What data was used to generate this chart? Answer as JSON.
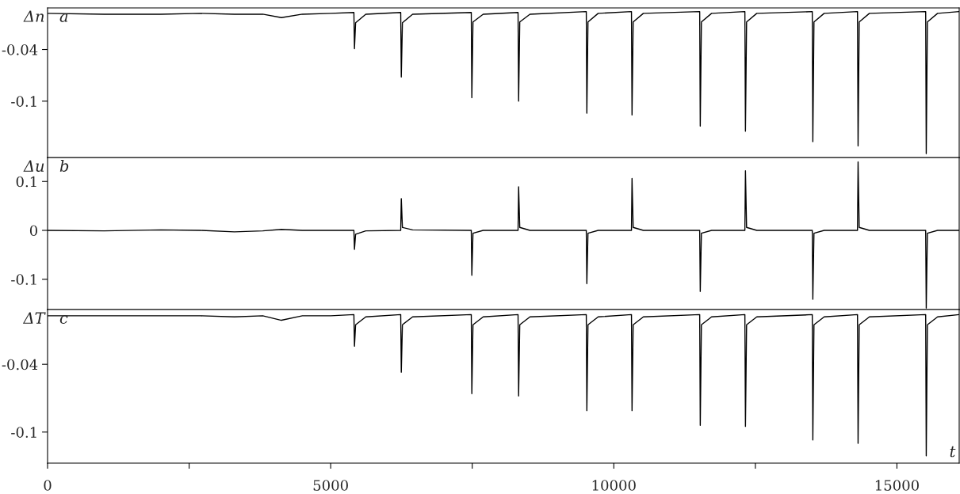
{
  "chart_data": [
    {
      "type": "line",
      "ylabel": "Δn",
      "annotations": [
        "a"
      ],
      "tick_labels": "y",
      "xlim": [
        0,
        16100
      ],
      "ylim": [
        -0.1655,
        0.0083
      ],
      "yticks": [
        -0.04,
        -0.1
      ],
      "x": [
        0,
        1000,
        2000,
        2700,
        3300,
        3800,
        4130,
        4500,
        5000,
        5410,
        5420,
        5440,
        5620,
        6237,
        6247,
        6267,
        6447,
        7483,
        7493,
        7513,
        7693,
        8309,
        8319,
        8339,
        8519,
        9514,
        9524,
        9544,
        9724,
        10312,
        10322,
        10342,
        10522,
        11517,
        11527,
        11547,
        11727,
        12315,
        12325,
        12345,
        12525,
        13505,
        13515,
        13535,
        13715,
        14304,
        14314,
        14334,
        14514,
        15508,
        15518,
        15538,
        15718,
        16100
      ],
      "series": [
        {
          "color": "#000000",
          "values": [
            0.002,
            0.001,
            0.001,
            0.002,
            0.001,
            0.001,
            -0.003,
            0.001,
            0.002,
            0.003,
            -0.039,
            -0.009,
            0.001,
            0.003,
            -0.072,
            -0.009,
            0.001,
            0.003,
            -0.096,
            -0.008,
            0.001,
            0.003,
            -0.1,
            -0.008,
            0.001,
            0.004,
            -0.114,
            -0.008,
            0.002,
            0.004,
            -0.116,
            -0.008,
            0.002,
            0.004,
            -0.129,
            -0.008,
            0.002,
            0.004,
            -0.135,
            -0.008,
            0.002,
            0.004,
            -0.147,
            -0.008,
            0.002,
            0.004,
            -0.152,
            -0.008,
            0.002,
            0.004,
            -0.161,
            -0.008,
            0.002,
            0.004
          ]
        }
      ]
    },
    {
      "type": "line",
      "ylabel": "Δu",
      "annotations": [
        "b"
      ],
      "tick_labels": "y",
      "xlim": [
        0,
        16100
      ],
      "ylim": [
        -0.162,
        0.149
      ],
      "yticks": [
        0.1,
        0,
        -0.1
      ],
      "x": [
        0,
        1000,
        2000,
        2700,
        3300,
        3800,
        4130,
        4500,
        5000,
        5410,
        5420,
        5440,
        5620,
        6237,
        6247,
        6267,
        6447,
        7483,
        7493,
        7513,
        7693,
        8309,
        8319,
        8339,
        8519,
        9514,
        9524,
        9544,
        9724,
        10312,
        10322,
        10342,
        10522,
        11517,
        11527,
        11547,
        11727,
        12315,
        12325,
        12345,
        12525,
        13505,
        13515,
        13535,
        13715,
        14304,
        14314,
        14334,
        14514,
        15508,
        15518,
        15538,
        15718,
        16100
      ],
      "series": [
        {
          "color": "#000000",
          "values": [
            0,
            -0.001,
            0.001,
            0,
            -0.003,
            -0.001,
            0.002,
            0,
            0,
            0,
            -0.039,
            -0.008,
            -0.001,
            0,
            0.065,
            0.006,
            0.001,
            0,
            -0.092,
            -0.006,
            0,
            0,
            0.089,
            0.006,
            0,
            0,
            -0.109,
            -0.006,
            0,
            0,
            0.106,
            0.006,
            0,
            0,
            -0.125,
            -0.006,
            0,
            0,
            0.122,
            0.006,
            0,
            0,
            -0.141,
            -0.006,
            0,
            0,
            0.14,
            0.006,
            0,
            0,
            -0.159,
            -0.006,
            0,
            0
          ]
        }
      ]
    },
    {
      "type": "line",
      "ylabel": "ΔT",
      "xlabel": "t",
      "annotations": [
        "c"
      ],
      "xlim": [
        0,
        16100
      ],
      "xticks": [
        0,
        {
          "value": 2500,
          "label": null
        },
        5000,
        {
          "value": 7500,
          "label": null
        },
        10000,
        {
          "value": 12500,
          "label": null
        },
        15000
      ],
      "ylim": [
        -0.1275,
        0.0085
      ],
      "yticks": [
        -0.04,
        -0.1
      ],
      "x": [
        0,
        1000,
        2000,
        2700,
        3300,
        3800,
        4130,
        4500,
        5000,
        5410,
        5420,
        5440,
        5620,
        6237,
        6247,
        6267,
        6447,
        7483,
        7493,
        7513,
        7693,
        8309,
        8319,
        8339,
        8519,
        9514,
        9524,
        9544,
        9724,
        10312,
        10322,
        10342,
        10522,
        11517,
        11527,
        11547,
        11727,
        12315,
        12325,
        12345,
        12525,
        13505,
        13515,
        13535,
        13715,
        14304,
        14314,
        14334,
        14514,
        15508,
        15518,
        15538,
        15718,
        16100
      ],
      "series": [
        {
          "color": "#000000",
          "values": [
            0.003,
            0.003,
            0.003,
            0.003,
            0.002,
            0.003,
            -0.001,
            0.003,
            0.003,
            0.004,
            -0.024,
            -0.005,
            0.002,
            0.004,
            -0.047,
            -0.005,
            0.002,
            0.004,
            -0.066,
            -0.005,
            0.002,
            0.004,
            -0.068,
            -0.005,
            0.002,
            0.004,
            -0.081,
            -0.005,
            0.002,
            0.004,
            -0.081,
            -0.005,
            0.002,
            0.004,
            -0.094,
            -0.005,
            0.002,
            0.004,
            -0.095,
            -0.005,
            0.002,
            0.004,
            -0.107,
            -0.005,
            0.002,
            0.004,
            -0.11,
            -0.005,
            0.002,
            0.004,
            -0.121,
            -0.005,
            0.002,
            0.004
          ]
        }
      ]
    }
  ]
}
